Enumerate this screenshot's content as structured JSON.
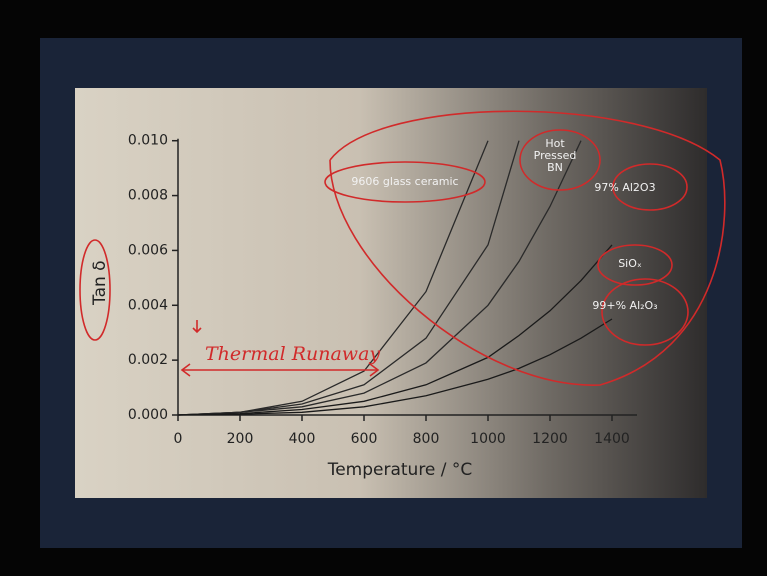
{
  "chart_data": {
    "type": "line",
    "x_label": "Temperature / °C",
    "y_label": "Tan δ",
    "annotation": "Thermal Runaway",
    "x": [
      0,
      200,
      400,
      600,
      800,
      1000,
      1100,
      1200,
      1300,
      1400
    ],
    "series": [
      {
        "name": "9606 glass ceramic",
        "color": "#2a2a2a",
        "values": [
          0,
          0.0001,
          0.0005,
          0.0016,
          0.0045,
          0.01,
          null,
          null,
          null,
          null
        ]
      },
      {
        "name": "Hot Pressed BN",
        "color": "#2a2a2a",
        "values": [
          0,
          0.0001,
          0.0004,
          0.0011,
          0.0028,
          0.0062,
          0.01,
          null,
          null,
          null
        ]
      },
      {
        "name": "97% Al2O3",
        "color": "#2a2a2a",
        "values": [
          0,
          0.0001,
          0.0003,
          0.0008,
          0.0019,
          0.004,
          0.0056,
          0.0076,
          0.01,
          null
        ]
      },
      {
        "name": "SiOₓ",
        "color": "#1a1a1a",
        "values": [
          0,
          5e-05,
          0.0002,
          0.0005,
          0.0011,
          0.0021,
          0.0029,
          0.0038,
          0.0049,
          0.0062
        ]
      },
      {
        "name": "99+% Al₂O₃",
        "color": "#1a1a1a",
        "values": [
          0,
          3e-05,
          0.0001,
          0.0003,
          0.0007,
          0.0013,
          0.0017,
          0.0022,
          0.0028,
          0.0035
        ]
      }
    ],
    "xlim": [
      0,
      1400
    ],
    "xticks": [
      0,
      200,
      400,
      600,
      800,
      1000,
      1200,
      1400
    ],
    "ylim": [
      0,
      0.0105
    ],
    "yticks": [
      {
        "value": 0,
        "label": "0.000"
      },
      {
        "value": 0.002,
        "label": "0.002"
      },
      {
        "value": 0.004,
        "label": "0.004"
      },
      {
        "value": 0.006,
        "label": "0.006"
      },
      {
        "value": 0.008,
        "label": "0.008"
      },
      {
        "value": 0.01,
        "label": "0.010"
      }
    ]
  }
}
